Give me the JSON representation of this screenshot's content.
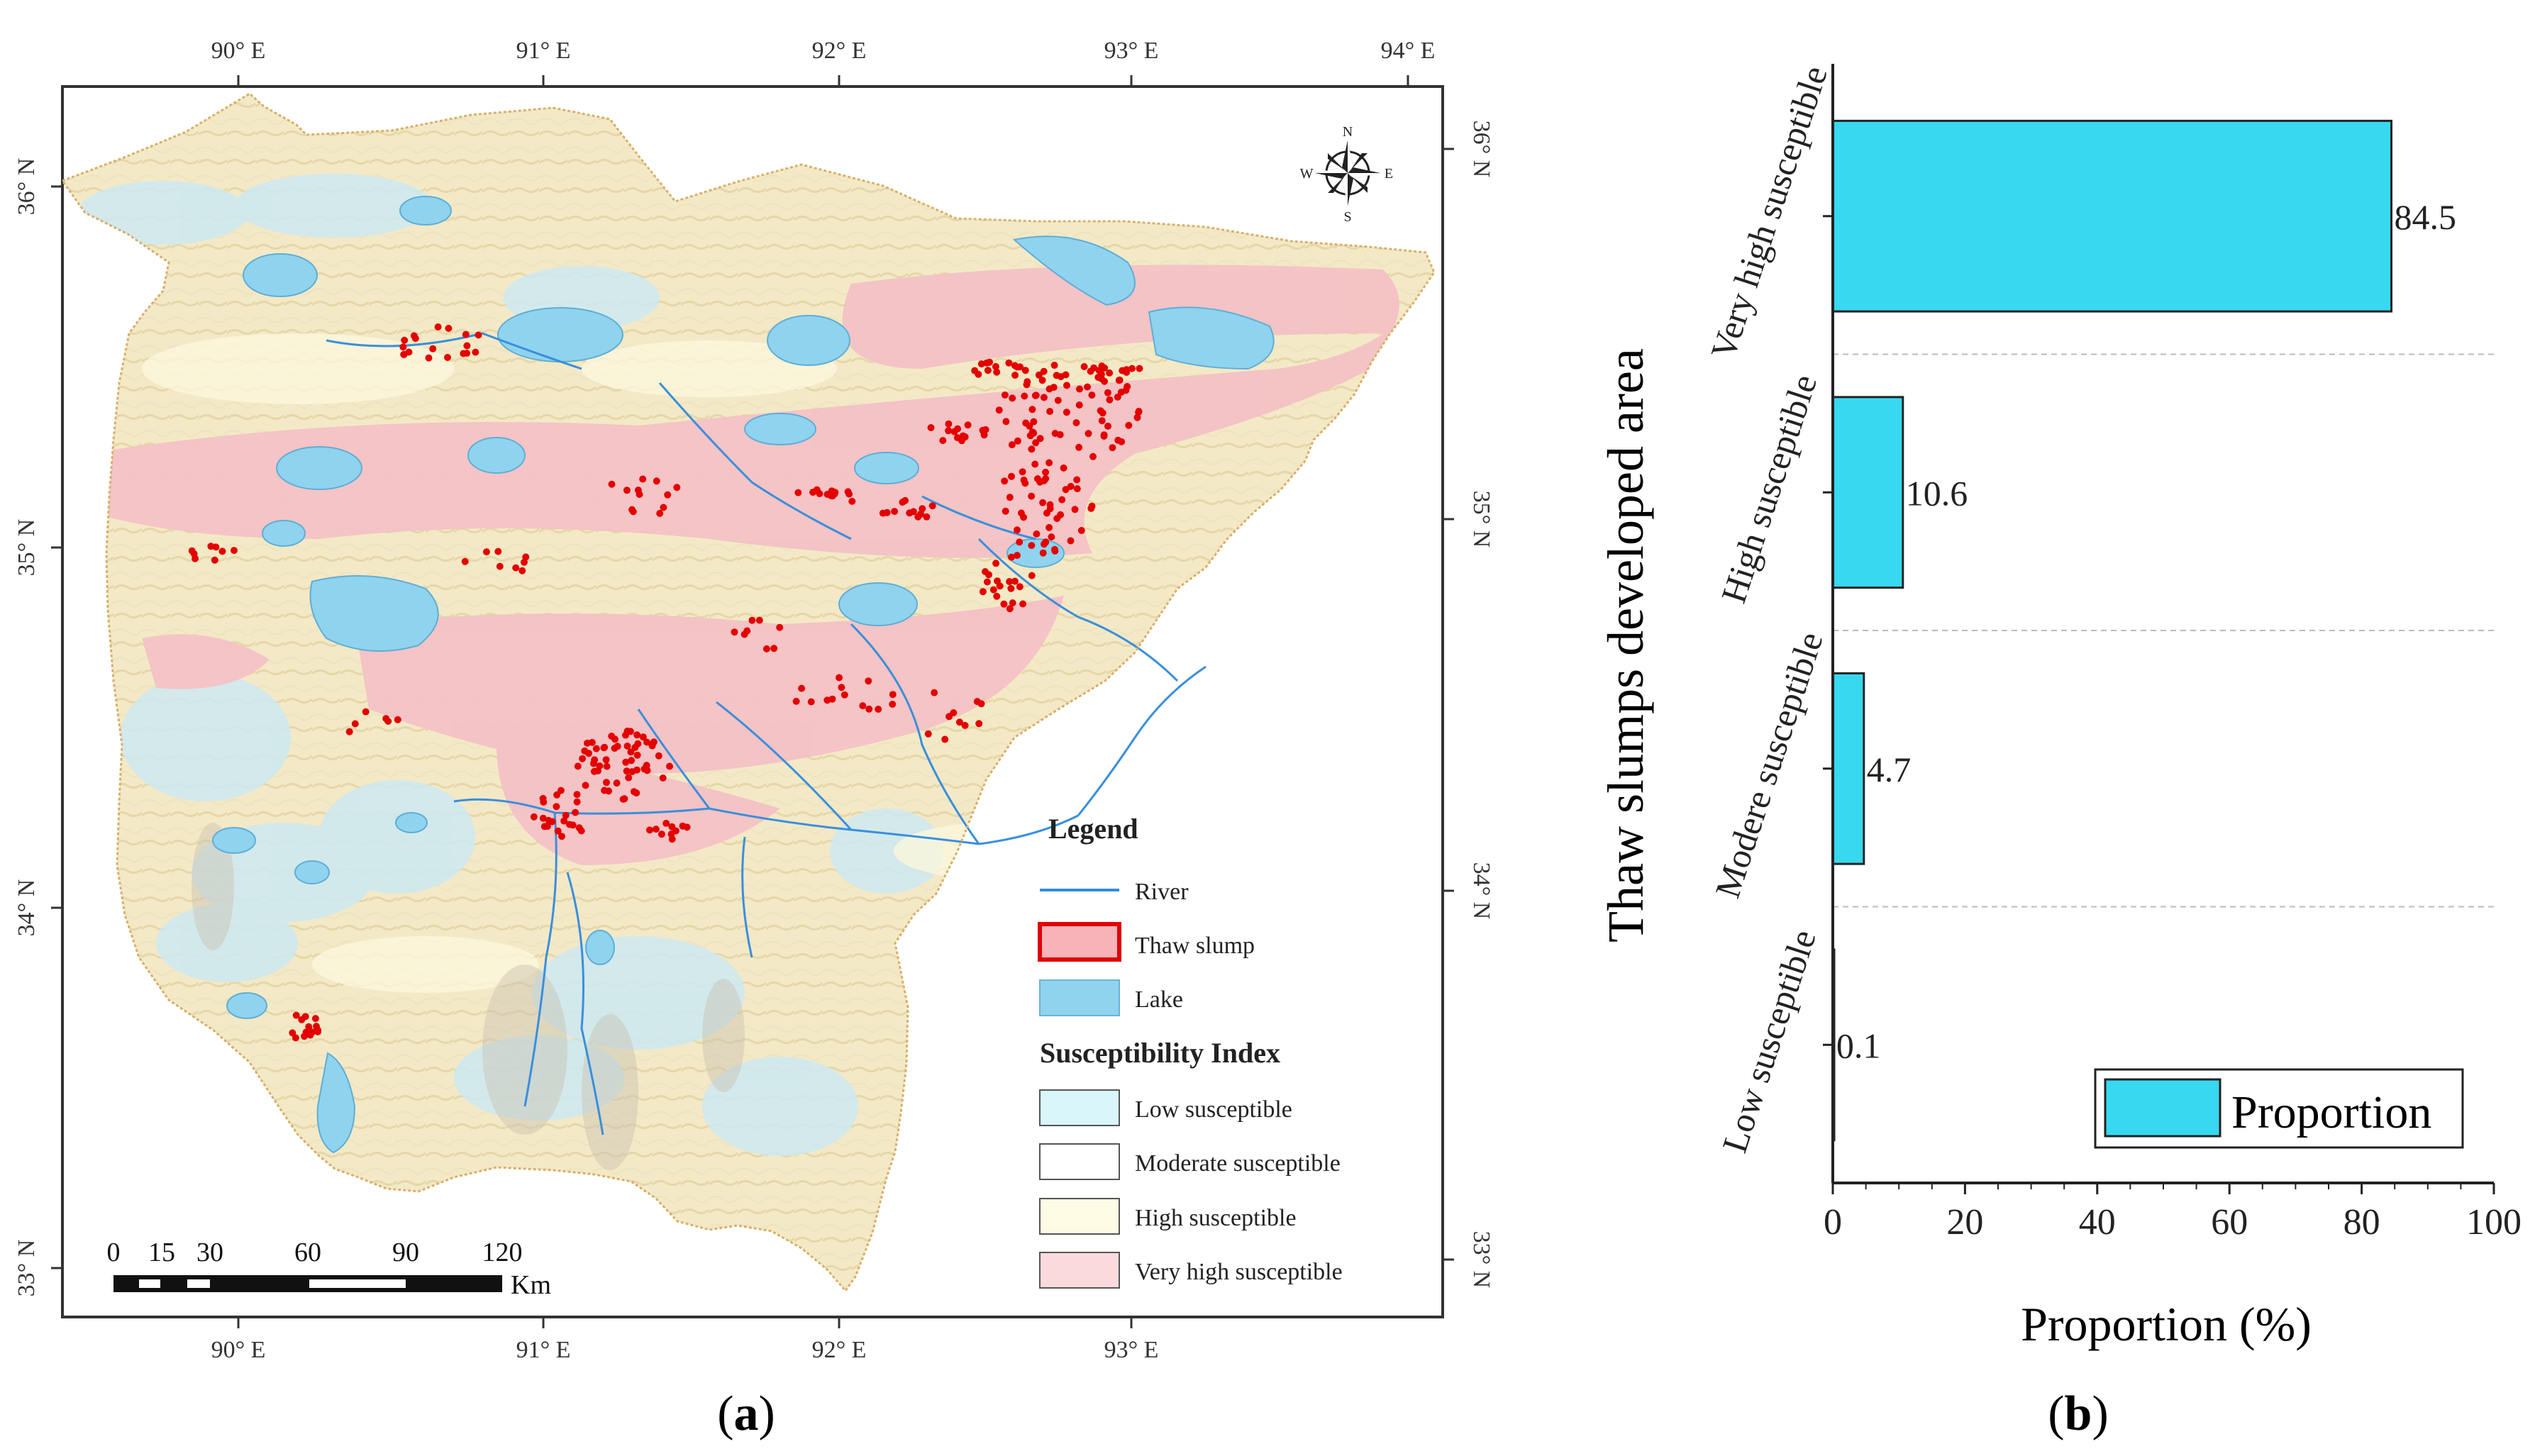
{
  "panel_a": {
    "label": "a",
    "top_ticks": [
      "90° E",
      "91° E",
      "92° E",
      "93° E",
      "94° E"
    ],
    "bottom_ticks": [
      "90° E",
      "91° E",
      "92° E",
      "93° E"
    ],
    "left_ticks": [
      "36° N",
      "35° N",
      "34° N",
      "33° N"
    ],
    "right_ticks": [
      "36° N",
      "35° N",
      "34° N",
      "33° N"
    ],
    "compass": {
      "n": "N",
      "s": "S",
      "e": "E",
      "w": "W"
    },
    "legend": {
      "title": "Legend",
      "items": [
        {
          "label": "River",
          "color": "#2f8fe0"
        },
        {
          "label": "Thaw slump",
          "color": "#f7b3b8",
          "stroke": "#e00000"
        },
        {
          "label": "Lake",
          "color": "#8fd3ef",
          "stroke": "#6ab3d6"
        }
      ],
      "index_title": "Susceptibility Index",
      "index_items": [
        {
          "label": "Low susceptible",
          "color": "#d9f6fb"
        },
        {
          "label": "Moderate susceptible",
          "color": "#ffffff"
        },
        {
          "label": "High susceptible",
          "color": "#fdfbe4"
        },
        {
          "label": "Very high susceptible",
          "color": "#fbdadd"
        }
      ]
    },
    "scale_bar": {
      "labels": [
        "0",
        "15",
        "30",
        "60",
        "90",
        "120"
      ],
      "unit": "Km"
    }
  },
  "panel_b": {
    "label": "b",
    "chart_data": {
      "type": "bar",
      "orientation": "horizontal",
      "categories": [
        "Very high susceptible",
        "High susceptible",
        "Modere susceptible",
        "Low susceptible"
      ],
      "series": [
        {
          "name": "Proportion",
          "values": [
            84.5,
            10.6,
            4.7,
            0.1
          ]
        }
      ],
      "data_labels": [
        "84.5",
        "10.6",
        "4.7",
        "0.1"
      ],
      "xlabel": "Proportion (%)",
      "ylabel": "Thaw slumps developed area",
      "xlim": [
        0,
        100
      ],
      "xticks": [
        "0",
        "20",
        "40",
        "60",
        "80",
        "100"
      ],
      "legend": "Proportion",
      "colors": {
        "bar": "#38d8f0",
        "grid": "#bbbbbb"
      }
    }
  }
}
